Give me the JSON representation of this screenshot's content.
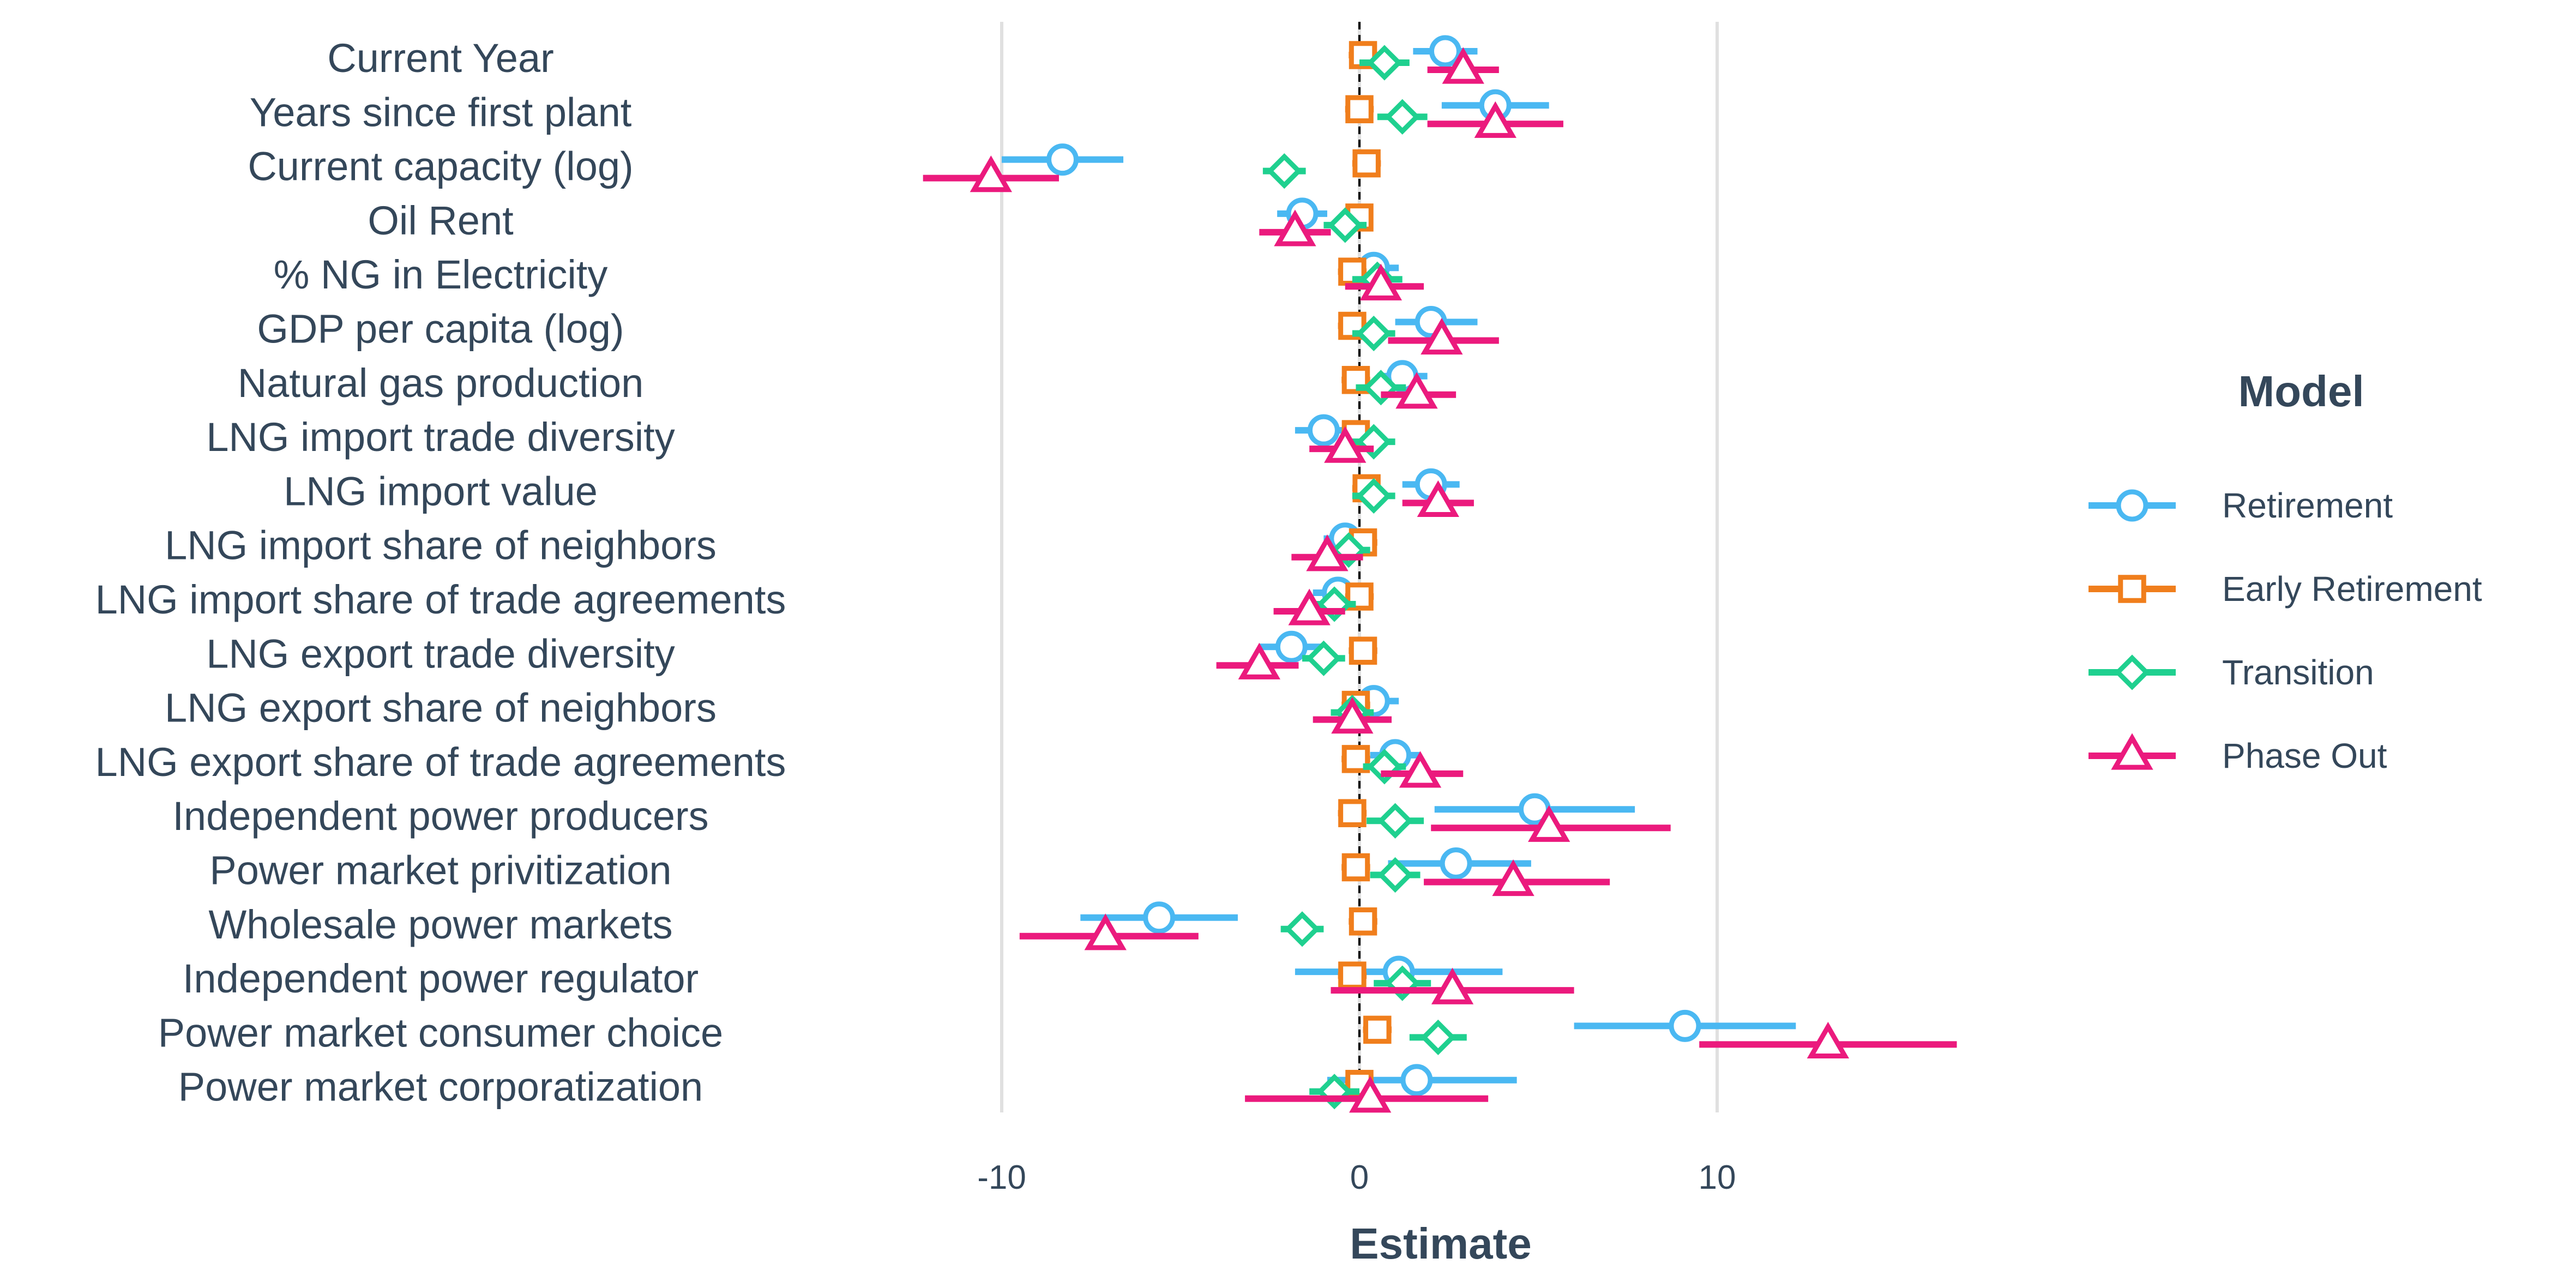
{
  "chart_data": {
    "type": "scatter",
    "subtype": "coefficient-plot",
    "title": "",
    "xlabel": "Estimate",
    "ylabel": "",
    "xlim": [
      -19,
      17.5
    ],
    "xticks": [
      -10,
      0,
      10
    ],
    "xtick_labels": [
      "-10",
      "0",
      "10"
    ],
    "grid": "vertical-major",
    "reference_line": {
      "x": 0,
      "style": "dashed"
    },
    "legend": {
      "title": "Model",
      "position": "right"
    },
    "categories": [
      "Current Year",
      "Years since first plant",
      "Current capacity (log)",
      "Oil Rent",
      "% NG in Electricity",
      "GDP per capita (log)",
      "Natural gas production",
      "LNG import trade diversity",
      "LNG import value",
      "LNG import share of neighbors",
      "LNG import share of trade agreements",
      "LNG export trade diversity",
      "LNG export share of neighbors",
      "LNG export share of trade agreements",
      "Independent power producers",
      "Power market privitization",
      "Wholesale power markets",
      "Independent power regulator",
      "Power market consumer choice",
      "Power market corporatization"
    ],
    "series": [
      {
        "name": "Retirement",
        "color": "#4AB8F2",
        "marker": "circle",
        "estimates": [
          2.4,
          3.8,
          -8.3,
          -1.6,
          0.4,
          2.0,
          1.2,
          -1.0,
          2.0,
          -0.4,
          -0.6,
          -1.9,
          0.4,
          1.0,
          4.9,
          2.7,
          -5.6,
          1.1,
          9.1,
          1.6
        ],
        "lower": [
          1.5,
          2.3,
          -10.0,
          -2.3,
          -0.3,
          1.0,
          0.5,
          -1.8,
          1.2,
          -1.0,
          -1.3,
          -2.8,
          -0.3,
          0.3,
          2.1,
          0.8,
          -7.8,
          -1.8,
          6.0,
          -0.9
        ],
        "upper": [
          3.3,
          5.3,
          -6.6,
          -0.9,
          1.1,
          3.3,
          1.9,
          -0.2,
          2.8,
          0.2,
          0.1,
          -1.0,
          1.1,
          1.7,
          7.7,
          4.8,
          -3.4,
          4.0,
          12.2,
          4.4
        ]
      },
      {
        "name": "Early Retirement",
        "color": "#F07E1C",
        "marker": "square",
        "estimates": [
          0.1,
          0.0,
          0.2,
          0.0,
          -0.2,
          -0.2,
          -0.1,
          -0.1,
          0.2,
          0.1,
          0.0,
          0.1,
          -0.1,
          -0.1,
          -0.2,
          -0.1,
          0.1,
          -0.2,
          0.5,
          0.0
        ],
        "lower": [
          -0.3,
          -0.4,
          -0.2,
          -0.3,
          -0.6,
          -0.6,
          -0.5,
          -0.5,
          -0.2,
          -0.3,
          -0.4,
          -0.3,
          -0.5,
          -0.5,
          -0.6,
          -0.5,
          -0.3,
          -0.6,
          0.1,
          -0.4
        ],
        "upper": [
          0.5,
          0.4,
          0.6,
          0.3,
          0.2,
          0.2,
          0.3,
          0.3,
          0.6,
          0.5,
          0.4,
          0.5,
          0.3,
          0.3,
          0.2,
          0.3,
          0.5,
          0.2,
          0.9,
          0.4
        ]
      },
      {
        "name": "Transition",
        "color": "#1FD08F",
        "marker": "diamond",
        "estimates": [
          0.7,
          1.2,
          -2.1,
          -0.4,
          0.5,
          0.4,
          0.6,
          0.4,
          0.4,
          -0.3,
          -0.7,
          -1.0,
          -0.2,
          0.7,
          1.0,
          1.0,
          -1.6,
          1.2,
          2.2,
          -0.7
        ],
        "lower": [
          0.0,
          0.5,
          -2.7,
          -1.0,
          -0.2,
          -0.2,
          -0.1,
          -0.2,
          -0.2,
          -0.9,
          -1.3,
          -1.6,
          -0.8,
          0.1,
          0.2,
          0.3,
          -2.2,
          0.4,
          1.4,
          -1.4
        ],
        "upper": [
          1.4,
          1.9,
          -1.5,
          0.2,
          1.2,
          1.0,
          1.3,
          1.0,
          1.0,
          0.3,
          -0.1,
          -0.4,
          0.4,
          1.3,
          1.8,
          1.7,
          -1.0,
          2.0,
          3.0,
          0.0
        ]
      },
      {
        "name": "Phase Out",
        "color": "#EB1A7D",
        "marker": "triangle",
        "estimates": [
          2.9,
          3.8,
          -10.3,
          -1.8,
          0.6,
          2.3,
          1.6,
          -0.4,
          2.2,
          -0.9,
          -1.4,
          -2.8,
          -0.2,
          1.7,
          5.3,
          4.3,
          -7.1,
          2.6,
          13.1,
          0.3
        ],
        "lower": [
          1.9,
          1.9,
          -12.2,
          -2.8,
          -0.4,
          0.8,
          0.6,
          -1.4,
          1.2,
          -1.9,
          -2.4,
          -4.0,
          -1.3,
          0.6,
          2.0,
          1.8,
          -9.5,
          -0.8,
          9.5,
          -3.2
        ],
        "upper": [
          3.9,
          5.7,
          -8.4,
          -0.8,
          1.8,
          3.9,
          2.7,
          0.4,
          3.2,
          0.1,
          -0.4,
          -1.7,
          0.9,
          2.9,
          8.7,
          7.0,
          -4.5,
          6.0,
          16.7,
          3.6
        ]
      }
    ]
  }
}
